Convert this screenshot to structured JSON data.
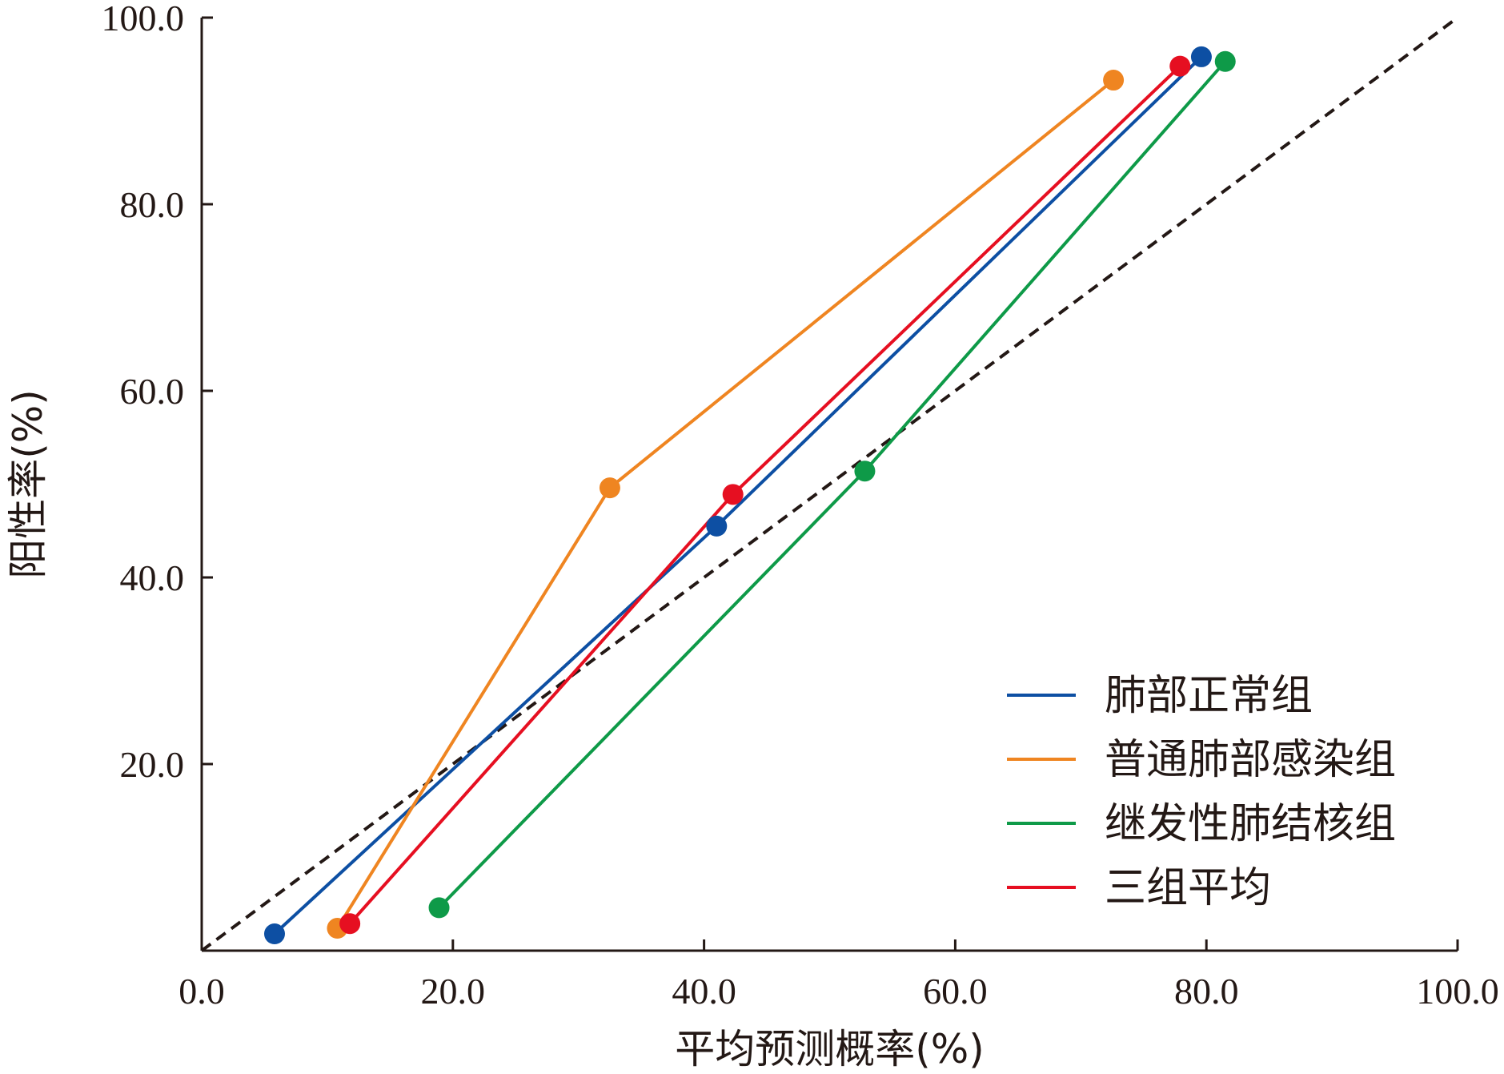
{
  "chart_data": {
    "type": "line",
    "title": "",
    "xlabel": "平均预测概率(%)",
    "ylabel": "阳性率(%)",
    "xlim": [
      0,
      100
    ],
    "ylim": [
      0,
      100
    ],
    "x_ticks": [
      "0.0",
      "20.0",
      "40.0",
      "60.0",
      "80.0",
      "100.0"
    ],
    "y_ticks": [
      "20.0",
      "40.0",
      "60.0",
      "80.0",
      "100.0"
    ],
    "tick_values": [
      0,
      20,
      40,
      60,
      80,
      100
    ],
    "grid": false,
    "legend_position": "bottom-right",
    "reference_line": {
      "style": "dashed",
      "color": "#231815",
      "from": [
        0,
        0
      ],
      "to": [
        100,
        100
      ]
    },
    "series": [
      {
        "name": "肺部正常组",
        "color": "#0d4fa3",
        "points": [
          [
            5.8,
            1.8
          ],
          [
            41.0,
            45.5
          ],
          [
            79.6,
            95.8
          ]
        ]
      },
      {
        "name": "普通肺部感染组",
        "color": "#ef8521",
        "points": [
          [
            10.8,
            2.4
          ],
          [
            32.5,
            49.6
          ],
          [
            72.6,
            93.3
          ]
        ]
      },
      {
        "name": "继发性肺结核组",
        "color": "#0e9a48",
        "points": [
          [
            18.9,
            4.6
          ],
          [
            52.8,
            51.4
          ],
          [
            81.5,
            95.3
          ]
        ]
      },
      {
        "name": "三组平均",
        "color": "#e60f21",
        "points": [
          [
            11.8,
            2.9
          ],
          [
            42.3,
            48.9
          ],
          [
            77.9,
            94.8
          ]
        ]
      }
    ]
  }
}
